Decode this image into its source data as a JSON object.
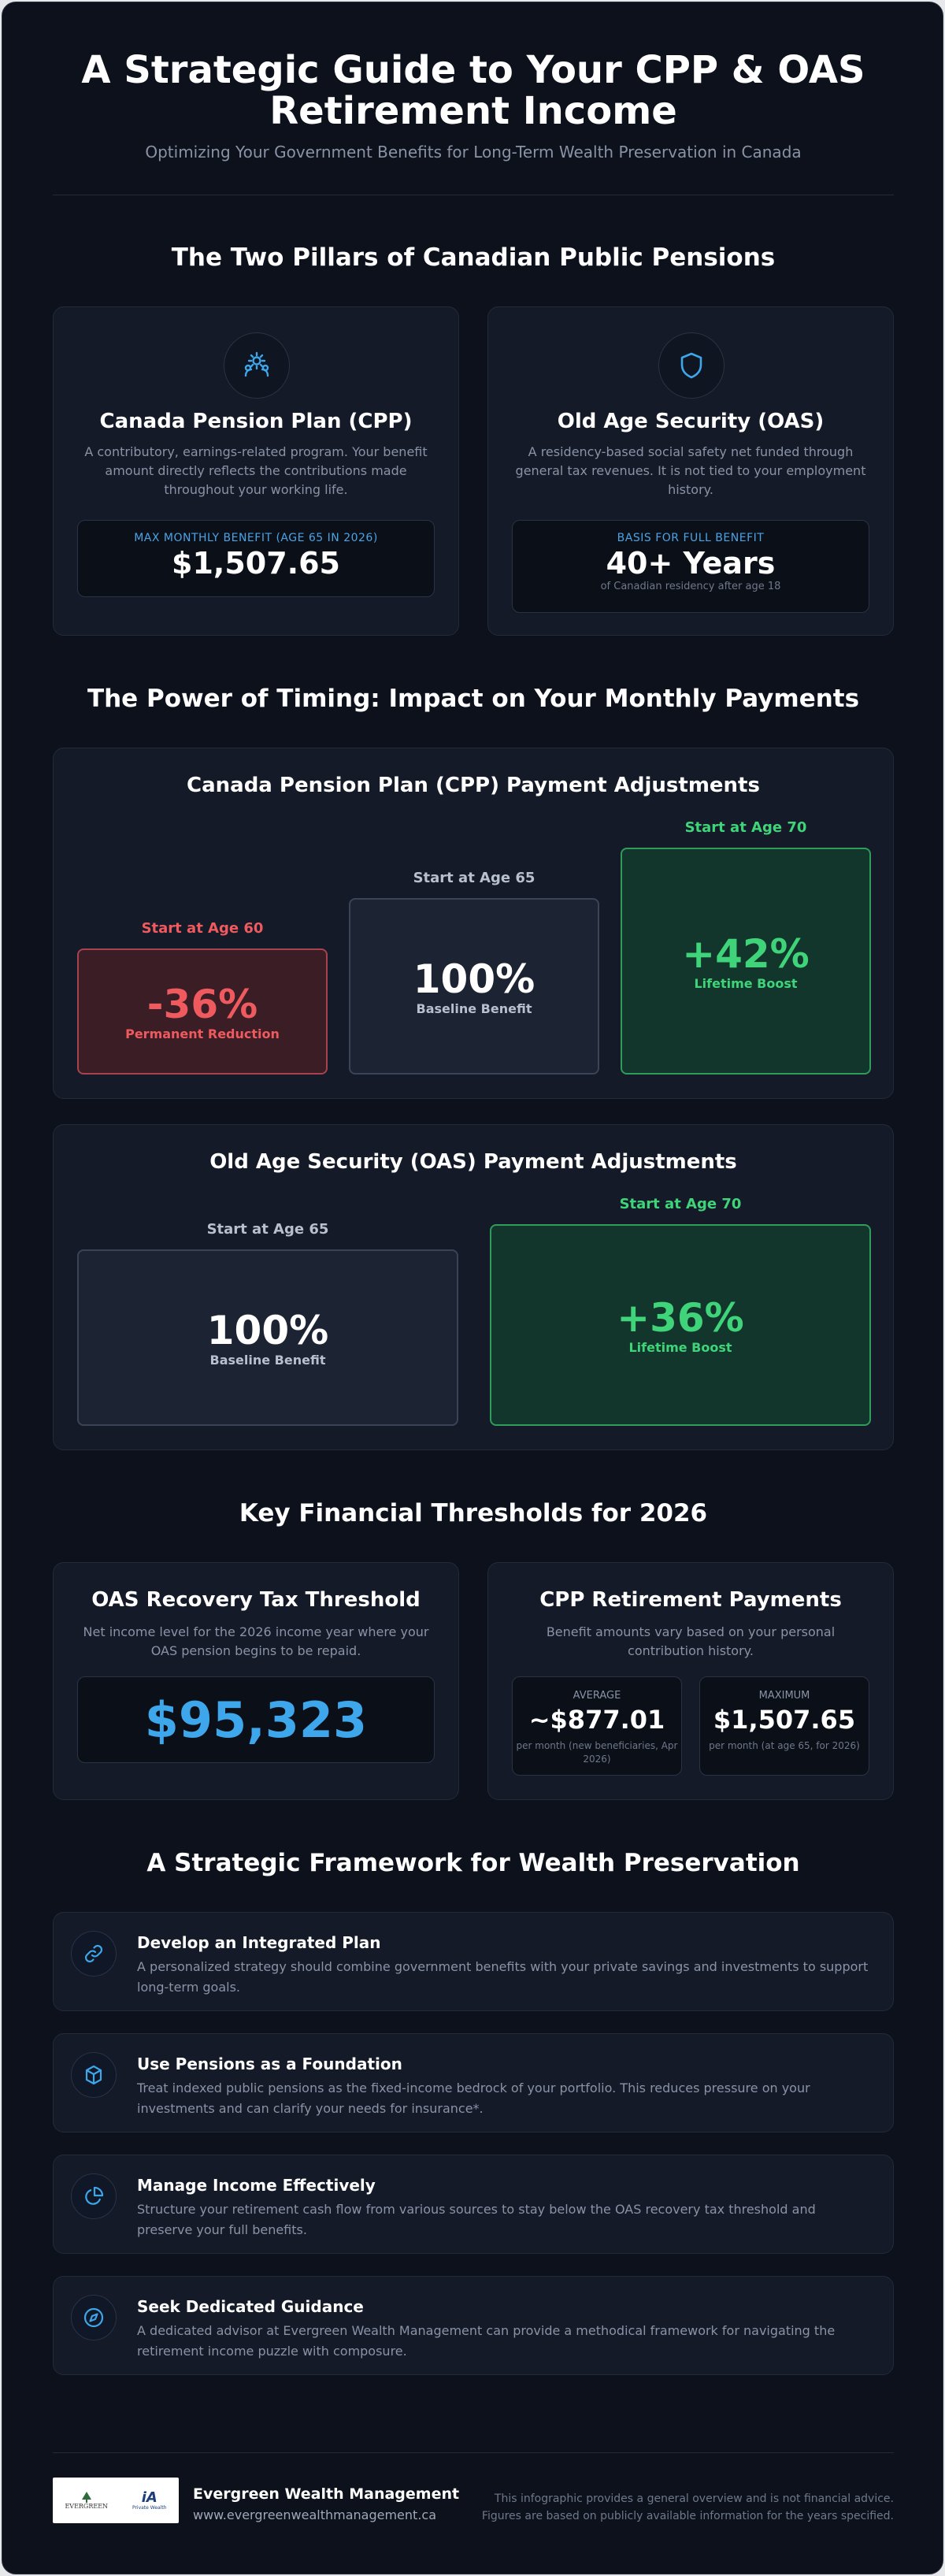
{
  "header": {
    "title": "A Strategic Guide to Your CPP & OAS Retirement Income",
    "subtitle": "Optimizing Your Government Benefits for Long-Term Wealth Preservation in Canada"
  },
  "pillars": {
    "heading": "The Two Pillars of Canadian Public Pensions",
    "cpp": {
      "icon": "gear-people-icon",
      "title": "Canada Pension Plan (CPP)",
      "description": "A contributory, earnings-related program. Your benefit amount directly reflects the contributions made throughout your working life.",
      "stat_label": "MAX MONTHLY BENEFIT (AGE 65 IN 2026)",
      "stat_value": "$1,507.65"
    },
    "oas": {
      "icon": "shield-icon",
      "title": "Old Age Security (OAS)",
      "description": "A residency-based social safety net funded through general tax revenues. It is not tied to your employment history.",
      "stat_label": "BASIS FOR FULL BENEFIT",
      "stat_value": "40+ Years",
      "stat_note": "of Canadian residency after age 18"
    }
  },
  "timing": {
    "heading": "The Power of Timing: Impact on Your Monthly Payments",
    "cpp": {
      "title": "Canada Pension Plan (CPP) Payment Adjustments",
      "columns": [
        {
          "label": "Start at Age 60",
          "value": "-36%",
          "caption": "Permanent Reduction"
        },
        {
          "label": "Start at Age 65",
          "value": "100%",
          "caption": "Baseline Benefit"
        },
        {
          "label": "Start at Age 70",
          "value": "+42%",
          "caption": "Lifetime Boost"
        }
      ]
    },
    "oas": {
      "title": "Old Age Security (OAS) Payment Adjustments",
      "columns": [
        {
          "label": "Start at Age 65",
          "value": "100%",
          "caption": "Baseline Benefit"
        },
        {
          "label": "Start at Age 70",
          "value": "+36%",
          "caption": "Lifetime Boost"
        }
      ]
    }
  },
  "thresholds": {
    "heading": "Key Financial Thresholds for 2026",
    "oas_recovery": {
      "title": "OAS Recovery Tax Threshold",
      "description": "Net income level for the 2026 income year where your OAS pension begins to be repaid.",
      "value": "$95,323"
    },
    "cpp_payments": {
      "title": "CPP Retirement Payments",
      "description": "Benefit amounts vary based on your personal contribution history.",
      "average": {
        "label": "AVERAGE",
        "value": "~$877.01",
        "note": "per month (new beneficiaries, Apr 2026)"
      },
      "maximum": {
        "label": "MAXIMUM",
        "value": "$1,507.65",
        "note": "per month (at age 65, for 2026)"
      }
    }
  },
  "framework": {
    "heading": "A Strategic Framework for Wealth Preservation",
    "items": [
      {
        "icon": "link-icon",
        "title": "Develop an Integrated Plan",
        "description": "A personalized strategy should combine government benefits with your private savings and investments to support long-term goals."
      },
      {
        "icon": "cube-icon",
        "title": "Use Pensions as a Foundation",
        "description": "Treat indexed public pensions as the fixed-income bedrock of your portfolio. This reduces pressure on your investments and can clarify your needs for insurance*."
      },
      {
        "icon": "pie-chart-icon",
        "title": "Manage Income Effectively",
        "description": "Structure your retirement cash flow from various sources to stay below the OAS recovery tax threshold and preserve your full benefits."
      },
      {
        "icon": "compass-icon",
        "title": "Seek Dedicated Guidance",
        "description": "A dedicated advisor at Evergreen Wealth Management can provide a methodical framework for navigating the retirement income puzzle with composure."
      }
    ]
  },
  "footer": {
    "logo_text_1": "EVERGREEN",
    "logo_text_2": "iA",
    "logo_text_3": "Private Wealth",
    "brand_name": "Evergreen Wealth Management",
    "brand_url": "www.evergreenwealthmanagement.ca",
    "disclaimer": "This infographic provides a general overview and is not financial advice. Figures are based on publicly available information for the years specified."
  },
  "colors": {
    "background": "#0c111c",
    "accent_blue": "#3ea6ea",
    "reduction_red": "#ef5a5f",
    "boost_green": "#40d47a"
  }
}
